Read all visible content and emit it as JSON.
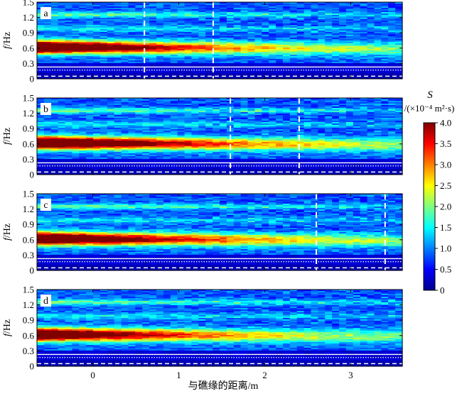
{
  "chart_data": {
    "type": "heatmap",
    "panels": [
      {
        "label": "a",
        "dashed_x": [
          0.6,
          1.4
        ]
      },
      {
        "label": "b",
        "dashed_x": [
          1.6,
          2.4
        ]
      },
      {
        "label": "c",
        "dashed_x": [
          2.6,
          3.4
        ]
      },
      {
        "label": "d",
        "dashed_x": []
      }
    ],
    "x_ticks": [
      "0",
      "1",
      "2",
      "3"
    ],
    "x_tick_values": [
      0,
      1,
      2,
      3
    ],
    "xlim": [
      -0.65,
      3.6
    ],
    "y_ticks": [
      "0",
      "0.3",
      "0.6",
      "0.9",
      "1.2",
      "1.5"
    ],
    "y_tick_values": [
      0,
      0.3,
      0.6,
      0.9,
      1.2,
      1.5
    ],
    "ylim": [
      0,
      1.5
    ],
    "y_label_italic": "f",
    "y_label_unit": "/Hz",
    "x_label": "与礁缘的距离/m",
    "colorbar": {
      "title_italic": "S",
      "unit": "/(×10⁻⁴ m²·s)",
      "ticks": [
        "4.0",
        "3.5",
        "3.0",
        "2.5",
        "2.0",
        "1.5",
        "1.0",
        "0.5",
        "0"
      ],
      "range": [
        0,
        4.0
      ]
    },
    "horizontal_lines": {
      "solid_white": 0.23,
      "dotted_white": 0.17,
      "dashed_white": 0.05
    },
    "peak_band_hz": [
      0.45,
      0.8
    ]
  }
}
